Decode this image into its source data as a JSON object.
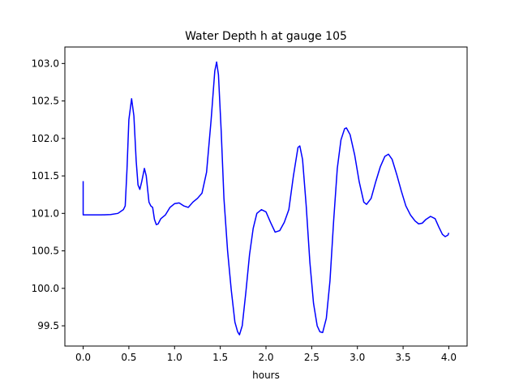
{
  "chart_data": {
    "type": "line",
    "title": "Water Depth h at gauge 105",
    "xlabel": "hours",
    "ylabel": "",
    "xlim": [
      -0.2,
      4.2
    ],
    "ylim": [
      99.23,
      103.22
    ],
    "xticks": [
      0.0,
      0.5,
      1.0,
      1.5,
      2.0,
      2.5,
      3.0,
      3.5,
      4.0
    ],
    "xtick_labels": [
      "0.0",
      "0.5",
      "1.0",
      "1.5",
      "2.0",
      "2.5",
      "3.0",
      "3.5",
      "4.0"
    ],
    "yticks": [
      99.5,
      100.0,
      100.5,
      101.0,
      101.5,
      102.0,
      102.5,
      103.0
    ],
    "ytick_labels": [
      "99.5",
      "100.0",
      "100.5",
      "101.0",
      "101.5",
      "102.0",
      "102.5",
      "103.0"
    ],
    "grid": false,
    "series": [
      {
        "color": "#0000ff",
        "points": [
          [
            0.0,
            101.43
          ],
          [
            0.0,
            100.98
          ],
          [
            0.1,
            100.98
          ],
          [
            0.2,
            100.98
          ],
          [
            0.3,
            100.985
          ],
          [
            0.38,
            101.0
          ],
          [
            0.44,
            101.05
          ],
          [
            0.46,
            101.1
          ],
          [
            0.48,
            101.6
          ],
          [
            0.5,
            102.25
          ],
          [
            0.53,
            102.53
          ],
          [
            0.555,
            102.3
          ],
          [
            0.58,
            101.7
          ],
          [
            0.6,
            101.38
          ],
          [
            0.62,
            101.32
          ],
          [
            0.64,
            101.42
          ],
          [
            0.67,
            101.6
          ],
          [
            0.69,
            101.5
          ],
          [
            0.72,
            101.15
          ],
          [
            0.74,
            101.1
          ],
          [
            0.76,
            101.08
          ],
          [
            0.78,
            100.92
          ],
          [
            0.8,
            100.85
          ],
          [
            0.82,
            100.86
          ],
          [
            0.85,
            100.93
          ],
          [
            0.9,
            100.98
          ],
          [
            0.95,
            101.08
          ],
          [
            1.0,
            101.13
          ],
          [
            1.05,
            101.14
          ],
          [
            1.1,
            101.1
          ],
          [
            1.15,
            101.08
          ],
          [
            1.2,
            101.15
          ],
          [
            1.25,
            101.2
          ],
          [
            1.3,
            101.27
          ],
          [
            1.35,
            101.55
          ],
          [
            1.4,
            102.25
          ],
          [
            1.44,
            102.9
          ],
          [
            1.46,
            103.02
          ],
          [
            1.48,
            102.85
          ],
          [
            1.51,
            102.1
          ],
          [
            1.54,
            101.2
          ],
          [
            1.58,
            100.5
          ],
          [
            1.62,
            99.98
          ],
          [
            1.66,
            99.55
          ],
          [
            1.69,
            99.42
          ],
          [
            1.71,
            99.38
          ],
          [
            1.74,
            99.5
          ],
          [
            1.78,
            99.95
          ],
          [
            1.82,
            100.45
          ],
          [
            1.86,
            100.8
          ],
          [
            1.9,
            101.0
          ],
          [
            1.95,
            101.05
          ],
          [
            2.0,
            101.02
          ],
          [
            2.05,
            100.88
          ],
          [
            2.1,
            100.75
          ],
          [
            2.15,
            100.77
          ],
          [
            2.2,
            100.88
          ],
          [
            2.25,
            101.05
          ],
          [
            2.3,
            101.5
          ],
          [
            2.35,
            101.88
          ],
          [
            2.37,
            101.9
          ],
          [
            2.4,
            101.72
          ],
          [
            2.44,
            101.1
          ],
          [
            2.48,
            100.35
          ],
          [
            2.52,
            99.8
          ],
          [
            2.56,
            99.5
          ],
          [
            2.59,
            99.42
          ],
          [
            2.62,
            99.41
          ],
          [
            2.66,
            99.6
          ],
          [
            2.7,
            100.1
          ],
          [
            2.74,
            100.9
          ],
          [
            2.78,
            101.6
          ],
          [
            2.82,
            101.98
          ],
          [
            2.86,
            102.13
          ],
          [
            2.88,
            102.14
          ],
          [
            2.92,
            102.05
          ],
          [
            2.97,
            101.78
          ],
          [
            3.02,
            101.42
          ],
          [
            3.07,
            101.15
          ],
          [
            3.1,
            101.12
          ],
          [
            3.15,
            101.2
          ],
          [
            3.2,
            101.42
          ],
          [
            3.25,
            101.62
          ],
          [
            3.3,
            101.76
          ],
          [
            3.34,
            101.79
          ],
          [
            3.38,
            101.72
          ],
          [
            3.43,
            101.52
          ],
          [
            3.48,
            101.3
          ],
          [
            3.53,
            101.1
          ],
          [
            3.58,
            100.98
          ],
          [
            3.63,
            100.9
          ],
          [
            3.67,
            100.86
          ],
          [
            3.71,
            100.87
          ],
          [
            3.75,
            100.92
          ],
          [
            3.8,
            100.96
          ],
          [
            3.85,
            100.93
          ],
          [
            3.89,
            100.82
          ],
          [
            3.93,
            100.72
          ],
          [
            3.96,
            100.69
          ],
          [
            3.99,
            100.71
          ],
          [
            4.0,
            100.74
          ]
        ]
      }
    ]
  }
}
